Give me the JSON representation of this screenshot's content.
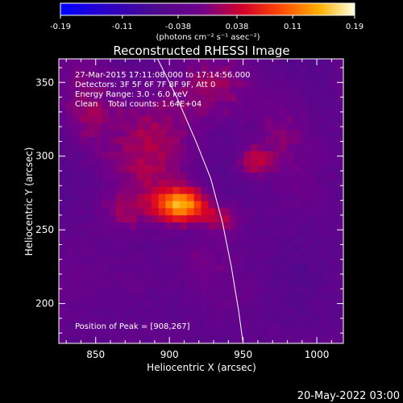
{
  "chart_data": {
    "type": "heatmap",
    "title": "Reconstructed RHESSI Image",
    "xlabel": "Heliocentric X (arcsec)",
    "ylabel": "Heliocentric Y (arcsec)",
    "xlim": [
      825,
      1018
    ],
    "ylim": [
      173,
      366
    ],
    "x_ticks": [
      850,
      900,
      950,
      1000
    ],
    "y_ticks": [
      200,
      250,
      300,
      350
    ],
    "colorbar": {
      "min": -0.19,
      "max": 0.19,
      "tick_values": [
        -0.19,
        -0.11,
        -0.038,
        0.038,
        0.11,
        0.19
      ],
      "tick_labels": [
        "-0.19",
        "-0.11",
        "-0.038",
        "0.038",
        "0.11",
        "0.19"
      ],
      "unit_text": "(photons cm⁻² s⁻¹ asec⁻²)"
    },
    "annotations": [
      "27-Mar-2015 17:11:08.000 to 17:14:56.000",
      "Detectors: 3F 5F 6F 7F 8F 9F, Att 0",
      "Energy Range: 3.0 - 6.0 keV",
      "Clean    Total counts: 1.64E+04"
    ],
    "peak_label": "Position of Peak = [908,267]",
    "peak": {
      "x": 908,
      "y": 267,
      "value": 0.19
    },
    "sources": [
      {
        "x": 908,
        "y": 267,
        "sx": 12,
        "sy": 8,
        "amp": 0.17
      },
      {
        "x": 935,
        "y": 258,
        "sx": 10,
        "sy": 6,
        "amp": 0.06
      },
      {
        "x": 957,
        "y": 297,
        "sx": 8,
        "sy": 7,
        "amp": 0.07
      },
      {
        "x": 888,
        "y": 310,
        "sx": 22,
        "sy": 30,
        "amp": 0.05
      },
      {
        "x": 870,
        "y": 262,
        "sx": 12,
        "sy": 9,
        "amp": 0.035
      },
      {
        "x": 930,
        "y": 345,
        "sx": 18,
        "sy": 14,
        "amp": 0.035
      },
      {
        "x": 875,
        "y": 215,
        "sx": 15,
        "sy": 14,
        "amp": 0.025
      },
      {
        "x": 920,
        "y": 228,
        "sx": 10,
        "sy": 10,
        "amp": 0.025
      },
      {
        "x": 975,
        "y": 320,
        "sx": 12,
        "sy": 20,
        "amp": 0.03
      },
      {
        "x": 845,
        "y": 330,
        "sx": 12,
        "sy": 20,
        "amp": 0.04
      }
    ],
    "limb_curve": [
      [
        892,
        366
      ],
      [
        905,
        340
      ],
      [
        918,
        310
      ],
      [
        928,
        285
      ],
      [
        936,
        255
      ],
      [
        942,
        225
      ],
      [
        947,
        195
      ],
      [
        950,
        173
      ]
    ],
    "grid": false
  },
  "footer": {
    "date_stamp": "20-May-2022 03:00"
  }
}
